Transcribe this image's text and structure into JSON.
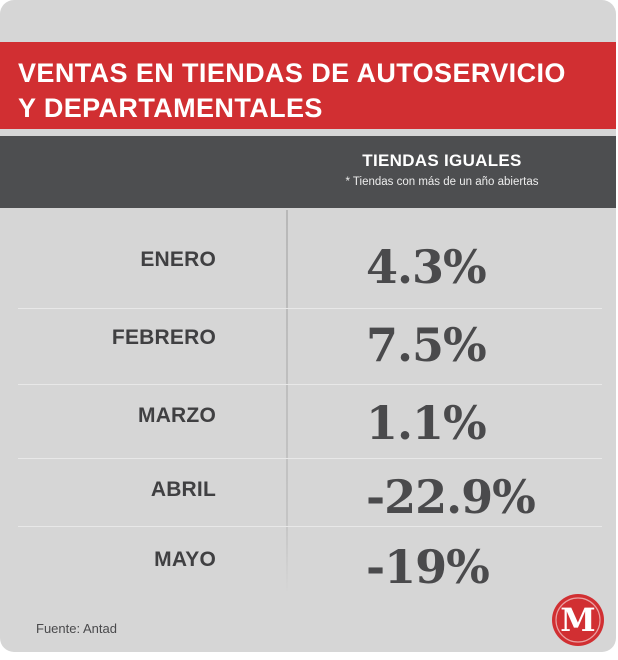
{
  "title": "VENTAS EN TIENDAS DE AUTOSERVICIO\nY DEPARTAMENTALES",
  "column_header": {
    "title": "TIENDAS IGUALES",
    "subtitle": "* Tiendas con más de un año abiertas"
  },
  "rows": [
    {
      "month": "ENERO",
      "value": "4.3%"
    },
    {
      "month": "FEBRERO",
      "value": "7.5%"
    },
    {
      "month": "MARZO",
      "value": "1.1%"
    },
    {
      "month": "ABRIL",
      "value": "-22.9%"
    },
    {
      "month": "MAYO",
      "value": "-19%"
    }
  ],
  "source": "Fuente: Antad",
  "logo": {
    "icon": "milenio-m-logo-icon",
    "letter": "M",
    "color": "#d12f32"
  },
  "colors": {
    "title_band": "#d12f32",
    "header_band": "#4d4e50",
    "background": "#d6d6d6",
    "text": "#404042"
  },
  "chart_data": {
    "type": "table",
    "title": "VENTAS EN TIENDAS DE AUTOSERVICIO Y DEPARTAMENTALES",
    "columns": [
      "",
      "TIENDAS IGUALES"
    ],
    "categories": [
      "ENERO",
      "FEBRERO",
      "MARZO",
      "ABRIL",
      "MAYO"
    ],
    "values": [
      4.3,
      7.5,
      1.1,
      -22.9,
      -19
    ],
    "unit": "%"
  }
}
